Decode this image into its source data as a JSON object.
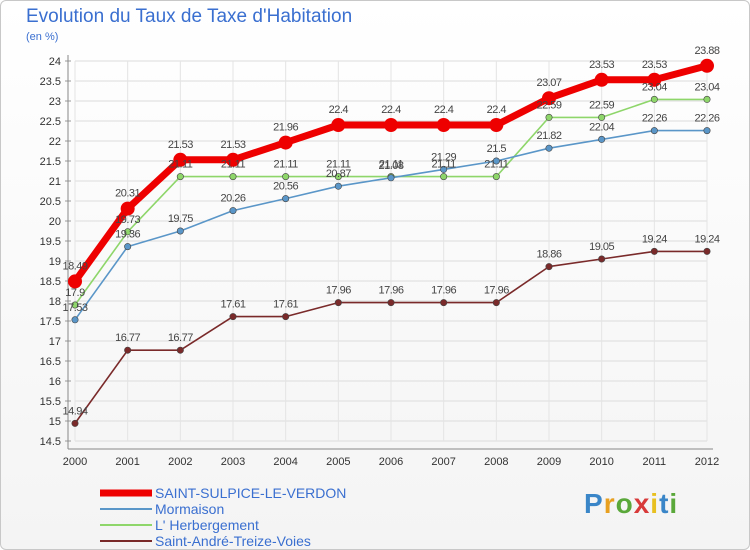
{
  "title": "Evolution du Taux de Taxe d'Habitation",
  "subtitle": "(en %)",
  "logo": "Proxiti",
  "chart_data": {
    "type": "line",
    "x": [
      "2000",
      "2001",
      "2002",
      "2003",
      "2004",
      "2005",
      "2006",
      "2007",
      "2008",
      "2009",
      "2010",
      "2011",
      "2012"
    ],
    "ylim": [
      14.5,
      24
    ],
    "yticks": [
      "14.5",
      "15",
      "15.5",
      "16",
      "16.5",
      "17",
      "17.5",
      "18",
      "18.5",
      "19",
      "19.5",
      "20",
      "20.5",
      "21",
      "21.5",
      "22",
      "22.5",
      "23",
      "23.5",
      "24"
    ],
    "grid": true,
    "legend": "bottom-left",
    "series": [
      {
        "name": "SAINT-SULPICE-LE-VERDON",
        "color": "#ee0000",
        "values": [
          18.49,
          20.31,
          21.53,
          21.53,
          21.96,
          22.4,
          22.4,
          22.4,
          22.4,
          23.07,
          23.53,
          23.53,
          23.88
        ],
        "labels": [
          "18.49",
          "20.31",
          "21.53",
          "21.53",
          "21.96",
          "22.4",
          "22.4",
          "22.4",
          "22.4",
          "23.07",
          "23.53",
          "23.53",
          "23.88"
        ]
      },
      {
        "name": "Mormaison",
        "color": "#5a96c8",
        "values": [
          17.53,
          19.36,
          19.75,
          20.26,
          20.56,
          20.87,
          21.08,
          21.29,
          21.5,
          21.82,
          22.04,
          22.26,
          22.26
        ],
        "labels": [
          "17.53",
          "19.36",
          "19.75",
          "20.26",
          "20.56",
          "20.87",
          "21.08",
          "21.29",
          "21.5",
          "21.82",
          "22.04",
          "22.26",
          "22.26"
        ]
      },
      {
        "name": "L' Herbergement",
        "color": "#8ed66a",
        "values": [
          17.9,
          19.73,
          21.11,
          21.11,
          21.11,
          21.11,
          21.11,
          21.11,
          21.11,
          22.59,
          22.59,
          23.04,
          23.04
        ],
        "labels": [
          "17.9",
          "19.73",
          "21.11",
          "21.11",
          "21.11",
          "21.11",
          "21.11",
          "21.11",
          "21.11",
          "22.59",
          "22.59",
          "23.04",
          "23.04"
        ]
      },
      {
        "name": "Saint-André-Treize-Voies",
        "color": "#7a2a2a",
        "values": [
          14.94,
          16.77,
          16.77,
          17.61,
          17.61,
          17.96,
          17.96,
          17.96,
          17.96,
          18.86,
          19.05,
          19.24,
          19.24
        ],
        "labels": [
          "14.94",
          "16.77",
          "16.77",
          "17.61",
          "17.61",
          "17.96",
          "17.96",
          "17.96",
          "17.96",
          "18.86",
          "19.05",
          "19.24",
          "19.24"
        ]
      }
    ]
  }
}
